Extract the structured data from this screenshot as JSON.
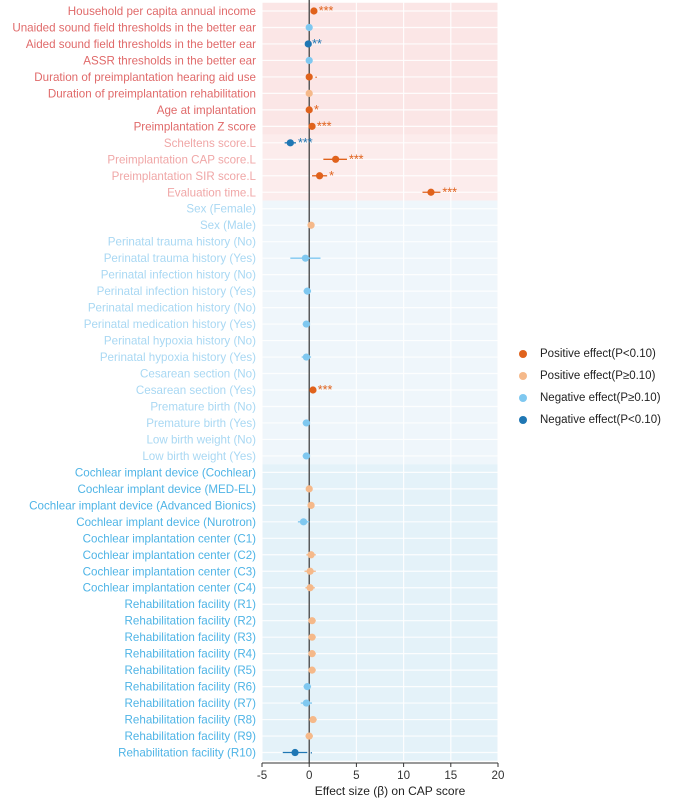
{
  "chart_data": {
    "type": "scatter",
    "subtype": "forest-plot",
    "title": "",
    "xlabel": "Effect size (β) on CAP score",
    "ylabel": "",
    "xlim": [
      -5,
      20
    ],
    "xticks": [
      -5,
      0,
      5,
      10,
      15,
      20
    ],
    "grid": true,
    "legend_position": "right",
    "legend": [
      {
        "key": "pos_sig",
        "label": "Positive effect(P<0.10)",
        "color": "#e0621c"
      },
      {
        "key": "pos_ns",
        "label": "Positive effect(P≥0.10)",
        "color": "#f5b98a"
      },
      {
        "key": "neg_ns",
        "label": "Negative effect(P≥0.10)",
        "color": "#7fc8f0"
      },
      {
        "key": "neg_sig",
        "label": "Negative effect(P<0.10)",
        "color": "#1f77b4"
      }
    ],
    "groups": [
      {
        "id": "g1",
        "color": "#fbe6e6",
        "label_color": "#e06a6a"
      },
      {
        "id": "g2",
        "color": "#fcecec",
        "label_color": "#f0a7a7"
      },
      {
        "id": "g3",
        "color": "#eff6fb",
        "label_color": "#a9d8f3"
      },
      {
        "id": "g4",
        "color": "#e4f2f9",
        "label_color": "#4fb4e6"
      }
    ],
    "rows": [
      {
        "label": "Household per capita annual income",
        "group": "g1",
        "beta": 0.5,
        "lo": 0.2,
        "hi": 0.8,
        "cat": "pos_sig",
        "sig": "***"
      },
      {
        "label": "Unaided sound field thresholds in the better ear",
        "group": "g1",
        "beta": 0.0,
        "lo": -0.2,
        "hi": 0.2,
        "cat": "neg_ns",
        "sig": ""
      },
      {
        "label": "Aided sound field thresholds in the better ear",
        "group": "g1",
        "beta": -0.1,
        "lo": -0.3,
        "hi": 0.1,
        "cat": "neg_sig",
        "sig": "**"
      },
      {
        "label": "ASSR thresholds in the better ear",
        "group": "g1",
        "beta": 0.0,
        "lo": -0.2,
        "hi": 0.2,
        "cat": "neg_ns",
        "sig": ""
      },
      {
        "label": "Duration of preimplantation hearing aid use",
        "group": "g1",
        "beta": 0.0,
        "lo": -0.2,
        "hi": 0.3,
        "cat": "pos_sig",
        "sig": "·"
      },
      {
        "label": "Duration of preimplantation rehabilitation",
        "group": "g1",
        "beta": 0.0,
        "lo": -0.2,
        "hi": 0.2,
        "cat": "pos_ns",
        "sig": ""
      },
      {
        "label": "Age at implantation",
        "group": "g1",
        "beta": 0.0,
        "lo": -0.2,
        "hi": 0.3,
        "cat": "pos_sig",
        "sig": "*"
      },
      {
        "label": "Preimplantation Z score",
        "group": "g1",
        "beta": 0.3,
        "lo": 0.0,
        "hi": 0.6,
        "cat": "pos_sig",
        "sig": "***"
      },
      {
        "label": "Scheltens score.L",
        "group": "g2",
        "beta": -2.0,
        "lo": -2.6,
        "hi": -1.4,
        "cat": "neg_sig",
        "sig": "***"
      },
      {
        "label": "Preimplantation CAP score.L",
        "group": "g2",
        "beta": 2.8,
        "lo": 1.5,
        "hi": 4.0,
        "cat": "pos_sig",
        "sig": "***"
      },
      {
        "label": "Preimplantation SIR score.L",
        "group": "g2",
        "beta": 1.1,
        "lo": 0.3,
        "hi": 1.9,
        "cat": "pos_sig",
        "sig": "*"
      },
      {
        "label": "Evaluation time.L",
        "group": "g2",
        "beta": 12.9,
        "lo": 12.0,
        "hi": 13.9,
        "cat": "pos_sig",
        "sig": "***"
      },
      {
        "label": "Sex (Female)",
        "group": "g3",
        "beta": null,
        "lo": null,
        "hi": null,
        "cat": "",
        "sig": ""
      },
      {
        "label": "Sex (Male)",
        "group": "g3",
        "beta": 0.2,
        "lo": 0.0,
        "hi": 0.4,
        "cat": "pos_ns",
        "sig": ""
      },
      {
        "label": "Perinatal trauma history (No)",
        "group": "g3",
        "beta": null,
        "lo": null,
        "hi": null,
        "cat": "",
        "sig": ""
      },
      {
        "label": "Perinatal trauma history (Yes)",
        "group": "g3",
        "beta": -0.4,
        "lo": -2.0,
        "hi": 1.2,
        "cat": "neg_ns",
        "sig": ""
      },
      {
        "label": "Perinatal infection history (No)",
        "group": "g3",
        "beta": null,
        "lo": null,
        "hi": null,
        "cat": "",
        "sig": ""
      },
      {
        "label": "Perinatal infection history (Yes)",
        "group": "g3",
        "beta": -0.2,
        "lo": -0.6,
        "hi": 0.2,
        "cat": "neg_ns",
        "sig": ""
      },
      {
        "label": "Perinatal medication history (No)",
        "group": "g3",
        "beta": null,
        "lo": null,
        "hi": null,
        "cat": "",
        "sig": ""
      },
      {
        "label": "Perinatal medication history (Yes)",
        "group": "g3",
        "beta": -0.3,
        "lo": -0.7,
        "hi": 0.1,
        "cat": "neg_ns",
        "sig": ""
      },
      {
        "label": "Perinatal hypoxia history (No)",
        "group": "g3",
        "beta": null,
        "lo": null,
        "hi": null,
        "cat": "",
        "sig": ""
      },
      {
        "label": "Perinatal hypoxia history (Yes)",
        "group": "g3",
        "beta": -0.3,
        "lo": -0.8,
        "hi": 0.2,
        "cat": "neg_ns",
        "sig": ""
      },
      {
        "label": "Cesarean section (No)",
        "group": "g3",
        "beta": null,
        "lo": null,
        "hi": null,
        "cat": "",
        "sig": ""
      },
      {
        "label": "Cesarean section (Yes)",
        "group": "g3",
        "beta": 0.4,
        "lo": 0.1,
        "hi": 0.7,
        "cat": "pos_sig",
        "sig": "***"
      },
      {
        "label": "Premature birth (No)",
        "group": "g3",
        "beta": null,
        "lo": null,
        "hi": null,
        "cat": "",
        "sig": ""
      },
      {
        "label": "Premature birth (Yes)",
        "group": "g3",
        "beta": -0.3,
        "lo": -0.7,
        "hi": 0.1,
        "cat": "neg_ns",
        "sig": ""
      },
      {
        "label": "Low birth weight (No)",
        "group": "g3",
        "beta": null,
        "lo": null,
        "hi": null,
        "cat": "",
        "sig": ""
      },
      {
        "label": "Low birth weight (Yes)",
        "group": "g3",
        "beta": -0.3,
        "lo": -0.7,
        "hi": 0.1,
        "cat": "neg_ns",
        "sig": ""
      },
      {
        "label": "Cochlear implant device (Cochlear)",
        "group": "g4",
        "beta": null,
        "lo": null,
        "hi": null,
        "cat": "",
        "sig": ""
      },
      {
        "label": "Cochlear implant device (MED-EL)",
        "group": "g4",
        "beta": 0.0,
        "lo": -0.3,
        "hi": 0.3,
        "cat": "pos_ns",
        "sig": ""
      },
      {
        "label": "Cochlear implant device (Advanced Bionics)",
        "group": "g4",
        "beta": 0.2,
        "lo": -0.1,
        "hi": 0.5,
        "cat": "pos_ns",
        "sig": ""
      },
      {
        "label": "Cochlear implant device (Nurotron)",
        "group": "g4",
        "beta": -0.6,
        "lo": -1.2,
        "hi": 0.0,
        "cat": "neg_ns",
        "sig": ""
      },
      {
        "label": "Cochlear implantation center (C1)",
        "group": "g4",
        "beta": null,
        "lo": null,
        "hi": null,
        "cat": "",
        "sig": ""
      },
      {
        "label": "Cochlear implantation center (C2)",
        "group": "g4",
        "beta": 0.2,
        "lo": -0.3,
        "hi": 0.7,
        "cat": "pos_ns",
        "sig": ""
      },
      {
        "label": "Cochlear implantation center (C3)",
        "group": "g4",
        "beta": 0.1,
        "lo": -0.5,
        "hi": 0.7,
        "cat": "pos_ns",
        "sig": ""
      },
      {
        "label": "Cochlear implantation center (C4)",
        "group": "g4",
        "beta": 0.1,
        "lo": -0.4,
        "hi": 0.6,
        "cat": "pos_ns",
        "sig": ""
      },
      {
        "label": "Rehabilitation facility (R1)",
        "group": "g4",
        "beta": null,
        "lo": null,
        "hi": null,
        "cat": "",
        "sig": ""
      },
      {
        "label": "Rehabilitation facility (R2)",
        "group": "g4",
        "beta": 0.3,
        "lo": -0.1,
        "hi": 0.7,
        "cat": "pos_ns",
        "sig": ""
      },
      {
        "label": "Rehabilitation facility (R3)",
        "group": "g4",
        "beta": 0.3,
        "lo": -0.1,
        "hi": 0.7,
        "cat": "pos_ns",
        "sig": ""
      },
      {
        "label": "Rehabilitation facility (R4)",
        "group": "g4",
        "beta": 0.3,
        "lo": -0.1,
        "hi": 0.7,
        "cat": "pos_ns",
        "sig": ""
      },
      {
        "label": "Rehabilitation facility (R5)",
        "group": "g4",
        "beta": 0.3,
        "lo": -0.1,
        "hi": 0.7,
        "cat": "pos_ns",
        "sig": ""
      },
      {
        "label": "Rehabilitation facility (R6)",
        "group": "g4",
        "beta": -0.2,
        "lo": -0.6,
        "hi": 0.2,
        "cat": "neg_ns",
        "sig": ""
      },
      {
        "label": "Rehabilitation facility (R7)",
        "group": "g4",
        "beta": -0.3,
        "lo": -0.9,
        "hi": 0.3,
        "cat": "neg_ns",
        "sig": ""
      },
      {
        "label": "Rehabilitation facility (R8)",
        "group": "g4",
        "beta": 0.4,
        "lo": 0.0,
        "hi": 0.8,
        "cat": "pos_ns",
        "sig": ""
      },
      {
        "label": "Rehabilitation facility (R9)",
        "group": "g4",
        "beta": 0.0,
        "lo": -0.4,
        "hi": 0.4,
        "cat": "pos_ns",
        "sig": ""
      },
      {
        "label": "Rehabilitation facility (R10)",
        "group": "g4",
        "beta": -1.5,
        "lo": -2.8,
        "hi": -0.2,
        "cat": "neg_sig",
        "sig": "·"
      }
    ]
  }
}
